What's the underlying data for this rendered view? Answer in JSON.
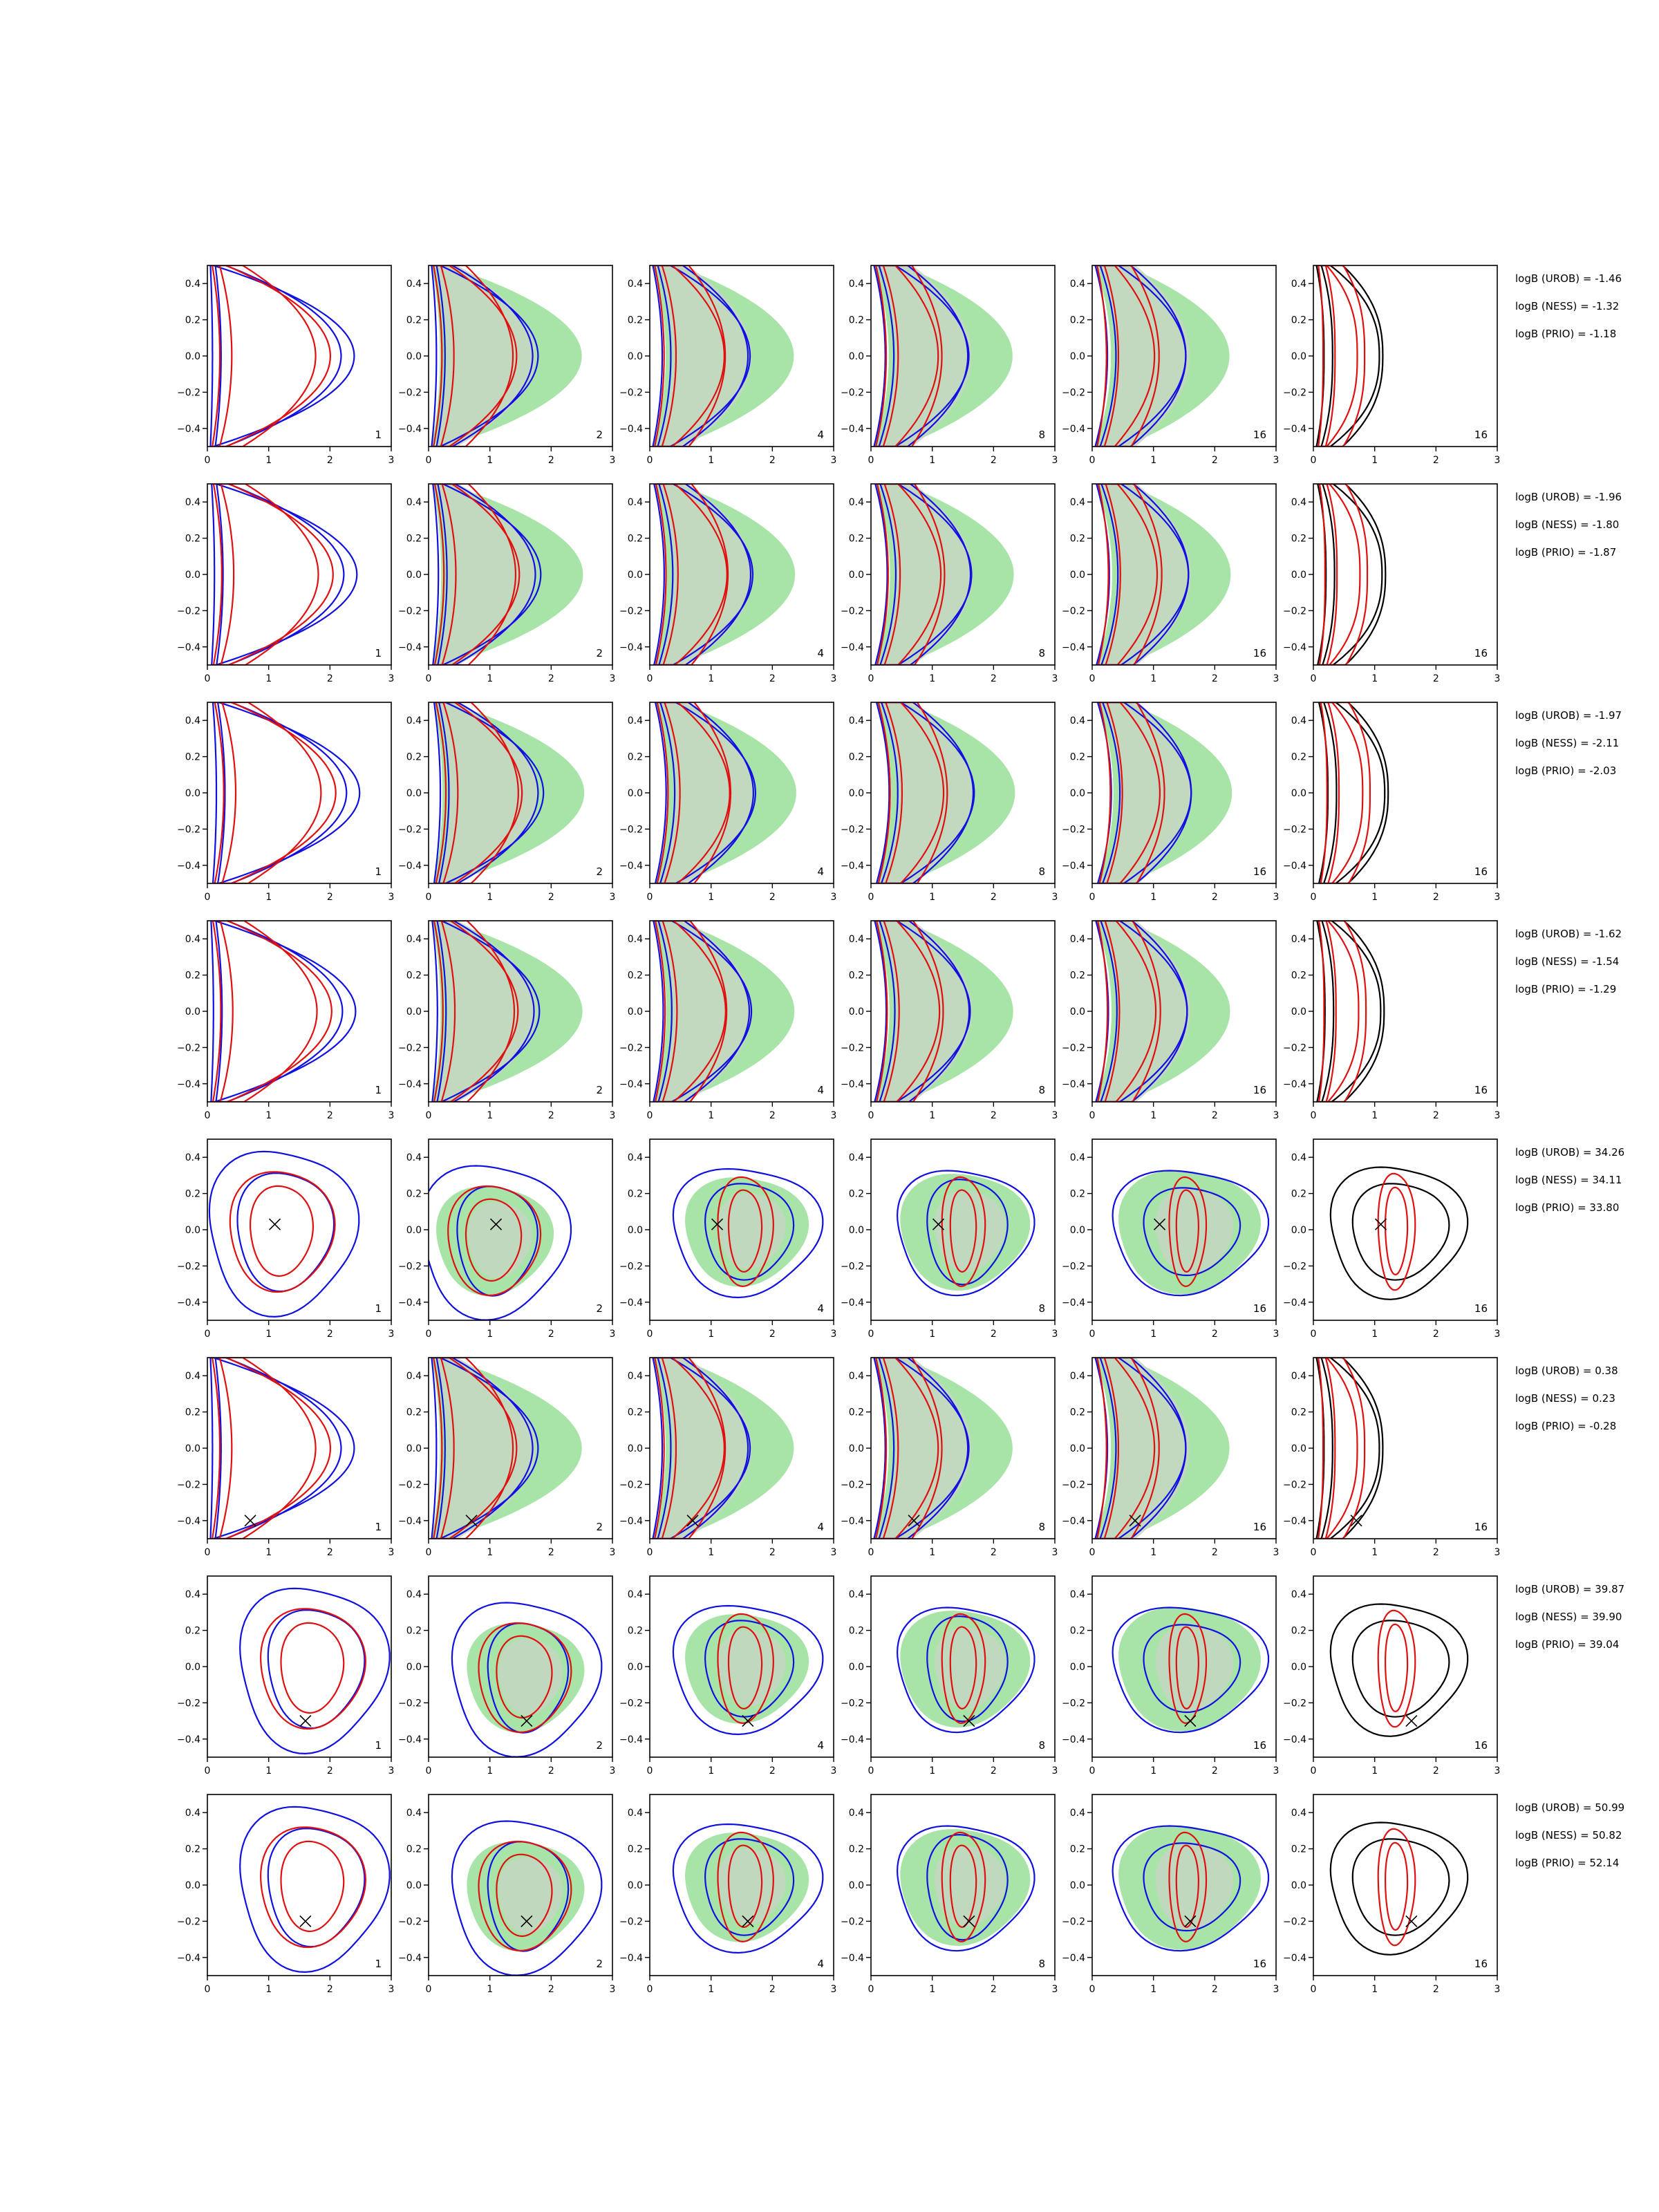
{
  "chart_data": {
    "type": "contour",
    "layout": "grid",
    "rows": 8,
    "cols": 6,
    "xlim": [
      0,
      3
    ],
    "ylim": [
      -0.5,
      0.5
    ],
    "xticks": [
      "0",
      "1",
      "2",
      "3"
    ],
    "yticks": [
      "−0.4",
      "−0.2",
      "0.0",
      "0.2",
      "0.4"
    ],
    "columns": [
      {
        "label": "1",
        "filled": false,
        "outer": "blue",
        "inner": "red"
      },
      {
        "label": "2",
        "filled": true,
        "outer": "blue",
        "inner": "red"
      },
      {
        "label": "4",
        "filled": true,
        "outer": "blue",
        "inner": "red"
      },
      {
        "label": "8",
        "filled": true,
        "outer": "blue",
        "inner": "red"
      },
      {
        "label": "16",
        "filled": true,
        "outer": "blue",
        "inner": "red"
      },
      {
        "label": "16",
        "filled": false,
        "outer": "black",
        "inner": "red"
      }
    ],
    "colors": {
      "blue": "#1010e0",
      "red": "#e01010",
      "black": "#000000",
      "fill_outer": "#a8e4a8",
      "fill_inner": "#c8d4c4"
    },
    "rows_data": [
      {
        "marker": null,
        "shape": "banana",
        "logB": [
          "logB (UROB) = -1.46",
          "logB (NESS) = -1.32",
          "logB (PRIO) = -1.18"
        ]
      },
      {
        "marker": null,
        "shape": "banana",
        "logB": [
          "logB (UROB) = -1.96",
          "logB (NESS) = -1.80",
          "logB (PRIO) = -1.87"
        ]
      },
      {
        "marker": null,
        "shape": "banana",
        "logB": [
          "logB (UROB) = -1.97",
          "logB (NESS) = -2.11",
          "logB (PRIO) = -2.03"
        ]
      },
      {
        "marker": null,
        "shape": "banana",
        "logB": [
          "logB (UROB) = -1.62",
          "logB (NESS) = -1.54",
          "logB (PRIO) = -1.29"
        ]
      },
      {
        "marker": [
          1.1,
          0.03
        ],
        "shape": "blob",
        "logB": [
          "logB (UROB) = 34.26",
          "logB (NESS) = 34.11",
          "logB (PRIO) = 33.80"
        ]
      },
      {
        "marker": [
          0.7,
          -0.4
        ],
        "shape": "banana",
        "logB": [
          "logB (UROB) = 0.38",
          "logB (NESS) = 0.23",
          "logB (PRIO) = -0.28"
        ]
      },
      {
        "marker": [
          1.6,
          -0.3
        ],
        "shape": "blob",
        "logB": [
          "logB (UROB) = 39.87",
          "logB (NESS) = 39.90",
          "logB (PRIO) = 39.04"
        ]
      },
      {
        "marker": [
          1.6,
          -0.2
        ],
        "shape": "blob",
        "logB": [
          "logB (UROB) = 50.99",
          "logB (NESS) = 50.82",
          "logB (PRIO) = 52.14"
        ]
      }
    ]
  }
}
